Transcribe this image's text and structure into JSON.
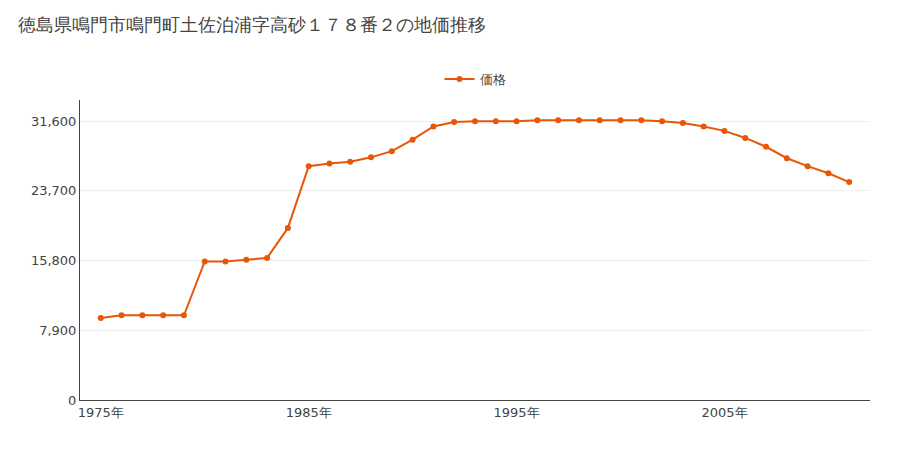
{
  "chart_data": {
    "type": "line",
    "title": "徳島県鳴門市鳴門町土佐泊浦字高砂１７８番２の地価推移",
    "x": [
      1975,
      1976,
      1977,
      1978,
      1979,
      1980,
      1981,
      1982,
      1983,
      1984,
      1985,
      1986,
      1987,
      1988,
      1989,
      1990,
      1991,
      1992,
      1993,
      1994,
      1995,
      1996,
      1997,
      1998,
      1999,
      2000,
      2001,
      2002,
      2003,
      2004,
      2005,
      2006,
      2007,
      2008,
      2009,
      2010,
      2011
    ],
    "series": [
      {
        "name": "価格",
        "color": "#e8560a",
        "marker": "circle",
        "values": [
          9300,
          9600,
          9600,
          9600,
          9600,
          15700,
          15700,
          15900,
          16100,
          19500,
          26500,
          26800,
          27000,
          27500,
          28200,
          29500,
          31000,
          31500,
          31600,
          31600,
          31600,
          31700,
          31700,
          31700,
          31700,
          31700,
          31700,
          31600,
          31400,
          31000,
          30500,
          29700,
          28700,
          27400,
          26500,
          25700,
          24700
        ]
      }
    ],
    "xlim": [
      1974,
      2012
    ],
    "xticks": [
      {
        "value": 1975,
        "label": "1975年"
      },
      {
        "value": 1985,
        "label": "1985年"
      },
      {
        "value": 1995,
        "label": "1995年"
      },
      {
        "value": 2005,
        "label": "2005年"
      }
    ],
    "ylim": [
      0,
      34000
    ],
    "yticks": [
      0,
      {
        "value": 7900,
        "label": "7,900"
      },
      {
        "value": 15800,
        "label": "15,800"
      },
      {
        "value": 23700,
        "label": "23,700"
      },
      {
        "value": 31600,
        "label": "31,600"
      }
    ],
    "grid": true,
    "legend": "top"
  }
}
